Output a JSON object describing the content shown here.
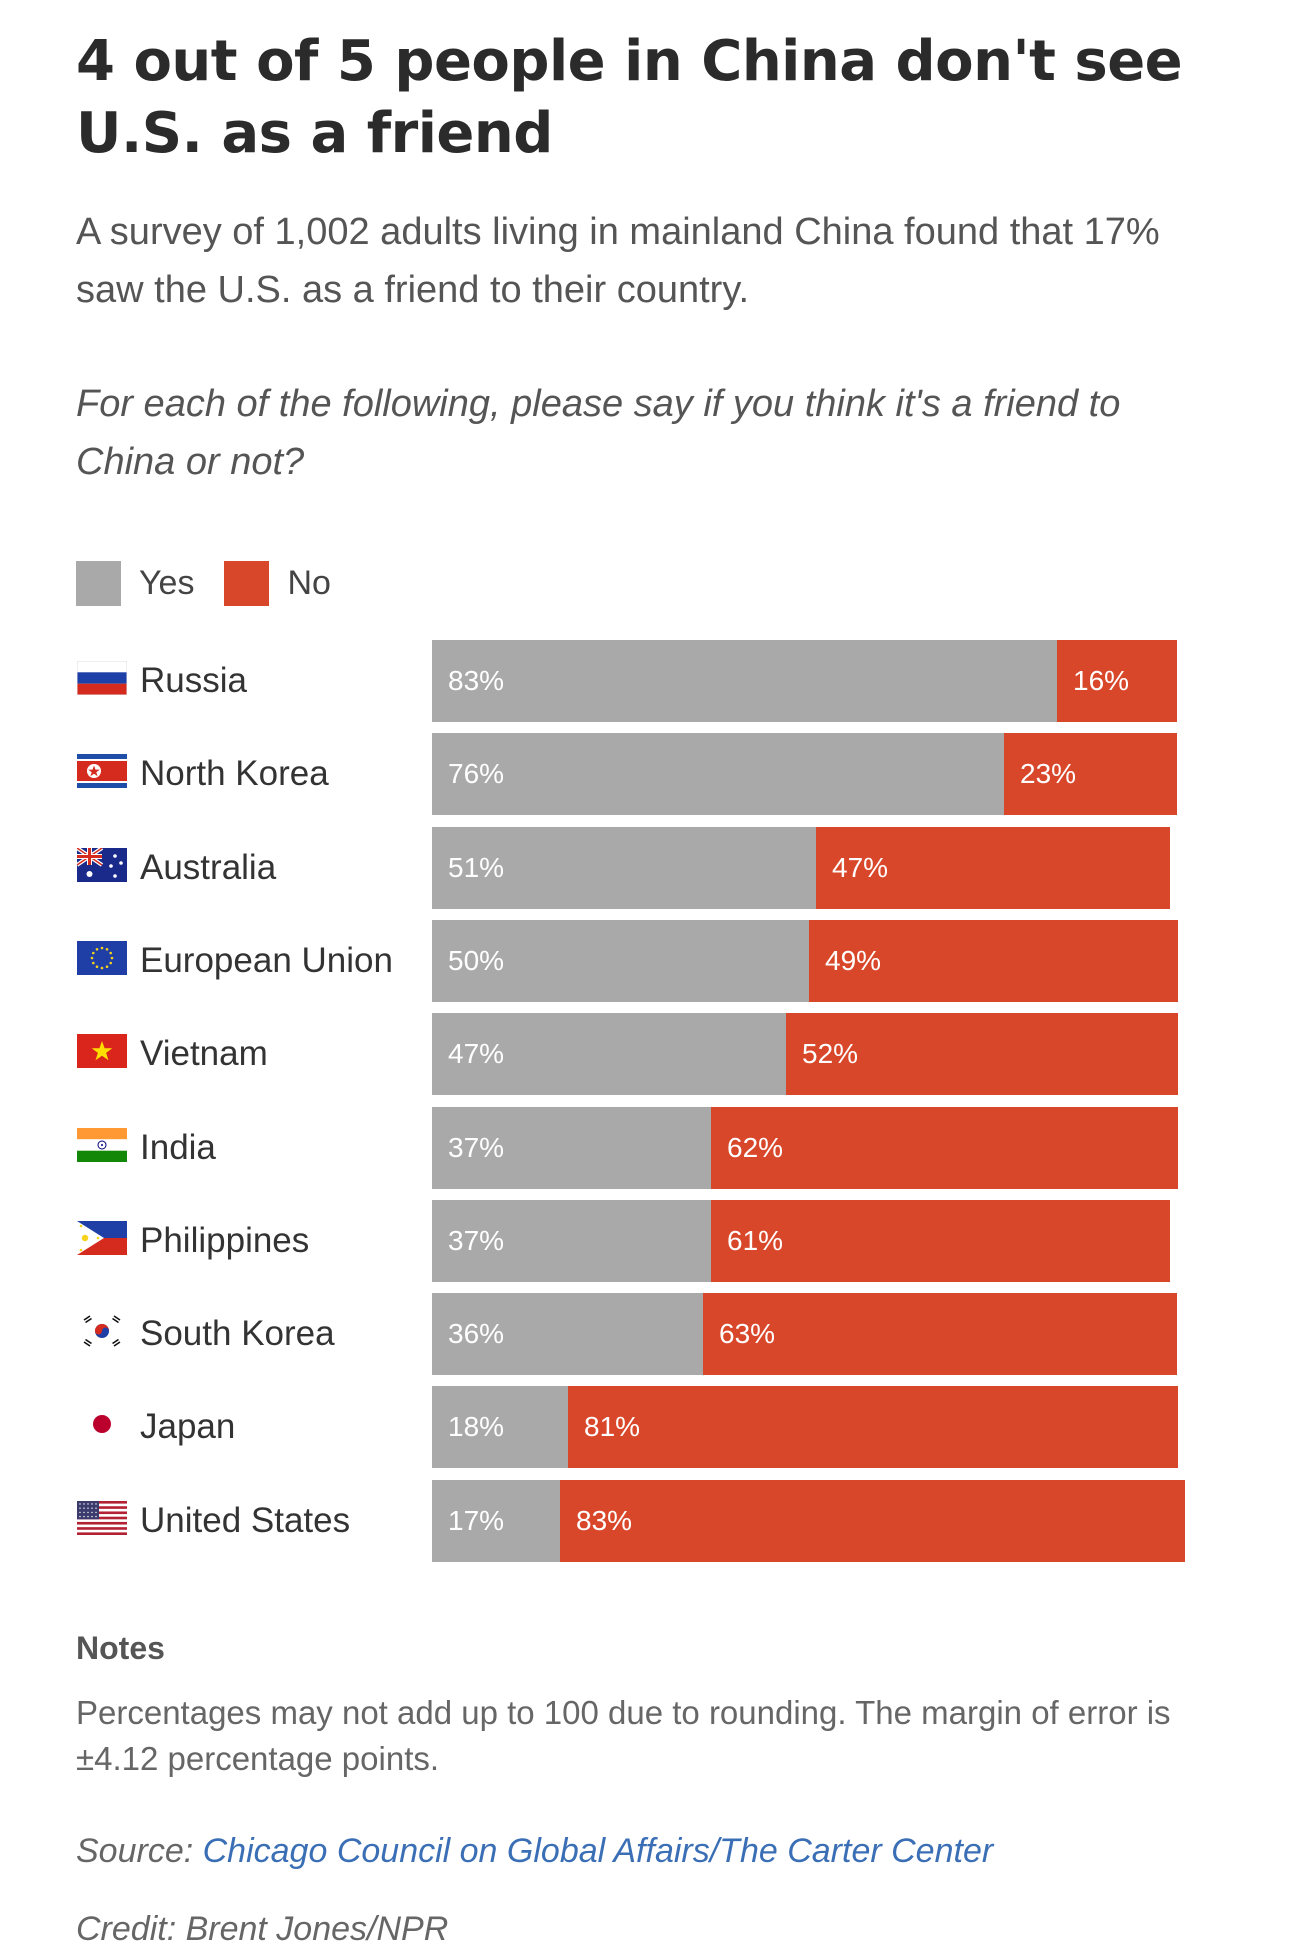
{
  "title": "4 out of 5 people in China don't see U.S. as a friend",
  "subtitle": "A survey of 1,002 adults living in mainland China found that 17% saw the U.S. as a friend to their country.",
  "question": "For each of the following, please say if you think it's a friend to China or not?",
  "legend": {
    "yes": "Yes",
    "no": "No"
  },
  "colors": {
    "yes": "#a9a9a9",
    "no": "#d9472b"
  },
  "notes": {
    "title": "Notes",
    "text": "Percentages may not add up to 100 due to rounding. The margin of error is ±4.12 percentage points."
  },
  "source": {
    "prefix": "Source: ",
    "link_text": "Chicago Council on Global Affairs/The Carter Center"
  },
  "credit": "Credit: Brent Jones/NPR",
  "chart_data": {
    "type": "bar",
    "orientation": "horizontal",
    "stacked": true,
    "categories": [
      "Russia",
      "North Korea",
      "Australia",
      "European Union",
      "Vietnam",
      "India",
      "Philippines",
      "South Korea",
      "Japan",
      "United States"
    ],
    "flags": [
      "russia-flag-icon",
      "north-korea-flag-icon",
      "australia-flag-icon",
      "eu-flag-icon",
      "vietnam-flag-icon",
      "india-flag-icon",
      "philippines-flag-icon",
      "south-korea-flag-icon",
      "japan-flag-icon",
      "us-flag-icon"
    ],
    "series": [
      {
        "name": "Yes",
        "values": [
          83,
          76,
          51,
          50,
          47,
          37,
          37,
          36,
          18,
          17
        ]
      },
      {
        "name": "No",
        "values": [
          16,
          23,
          47,
          49,
          52,
          62,
          61,
          63,
          81,
          83
        ]
      }
    ],
    "xlim": [
      0,
      100
    ],
    "value_suffix": "%",
    "legend_position": "top-left",
    "grid": false
  }
}
